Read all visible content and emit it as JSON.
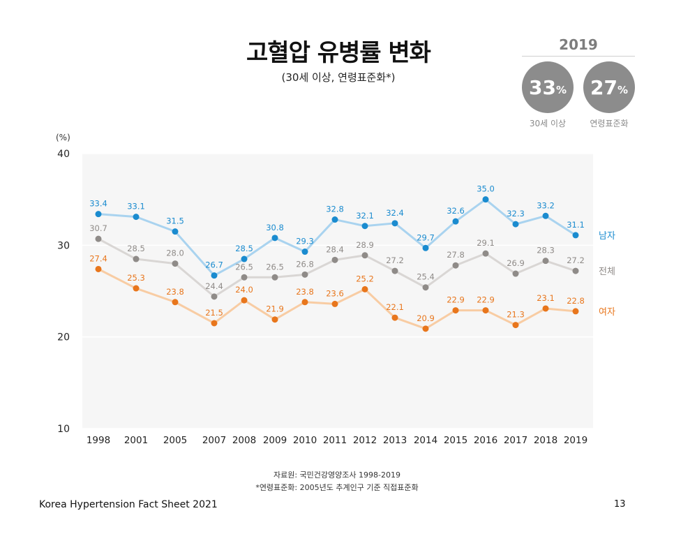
{
  "header": {
    "title": "고혈압 유병률 변화",
    "subtitle": "(30세 이상, 연령표준화*)"
  },
  "stats": {
    "year": "2019",
    "items": [
      {
        "value": "33",
        "unit": "%",
        "label": "30세 이상"
      },
      {
        "value": "27",
        "unit": "%",
        "label": "연령표준화"
      }
    ],
    "circle_color": "#8c8c8c"
  },
  "chart_data": {
    "type": "line",
    "unit_label": "(%)",
    "ylim": [
      10,
      40
    ],
    "yticks": [
      10,
      20,
      30,
      40
    ],
    "categories": [
      "1998",
      "2001",
      "2005",
      "2007",
      "2008",
      "2009",
      "2010",
      "2011",
      "2012",
      "2013",
      "2014",
      "2015",
      "2016",
      "2017",
      "2018",
      "2019"
    ],
    "series": [
      {
        "name": "남자",
        "line_color": "#a9d3ef",
        "marker_color": "#1a8bcf",
        "label_color": "#1a8bcf",
        "values": [
          33.4,
          33.1,
          31.5,
          26.7,
          28.5,
          30.8,
          29.3,
          32.8,
          32.1,
          32.4,
          29.7,
          32.6,
          35.0,
          32.3,
          33.2,
          31.1
        ]
      },
      {
        "name": "전체",
        "line_color": "#d9d6d4",
        "marker_color": "#8f8b88",
        "label_color": "#8f8b88",
        "values": [
          30.7,
          28.5,
          28.0,
          24.4,
          26.5,
          26.5,
          26.8,
          28.4,
          28.9,
          27.2,
          25.4,
          27.8,
          29.1,
          26.9,
          28.3,
          27.2
        ]
      },
      {
        "name": "여자",
        "line_color": "#f8cca3",
        "marker_color": "#e8761c",
        "label_color": "#e8761c",
        "values": [
          27.4,
          25.3,
          23.8,
          21.5,
          24.0,
          21.9,
          23.8,
          23.6,
          25.2,
          22.1,
          20.9,
          22.9,
          22.9,
          21.3,
          23.1,
          22.8
        ]
      }
    ],
    "plot_bg": "#f6f6f6"
  },
  "notes": {
    "source": "자료원: 국민건강영양조사 1998-2019",
    "footnote": "*연령표준화: 2005년도 추계인구 기준 직접표준화"
  },
  "footer": {
    "doc_title": "Korea Hypertension Fact Sheet 2021",
    "page_number": "13"
  }
}
